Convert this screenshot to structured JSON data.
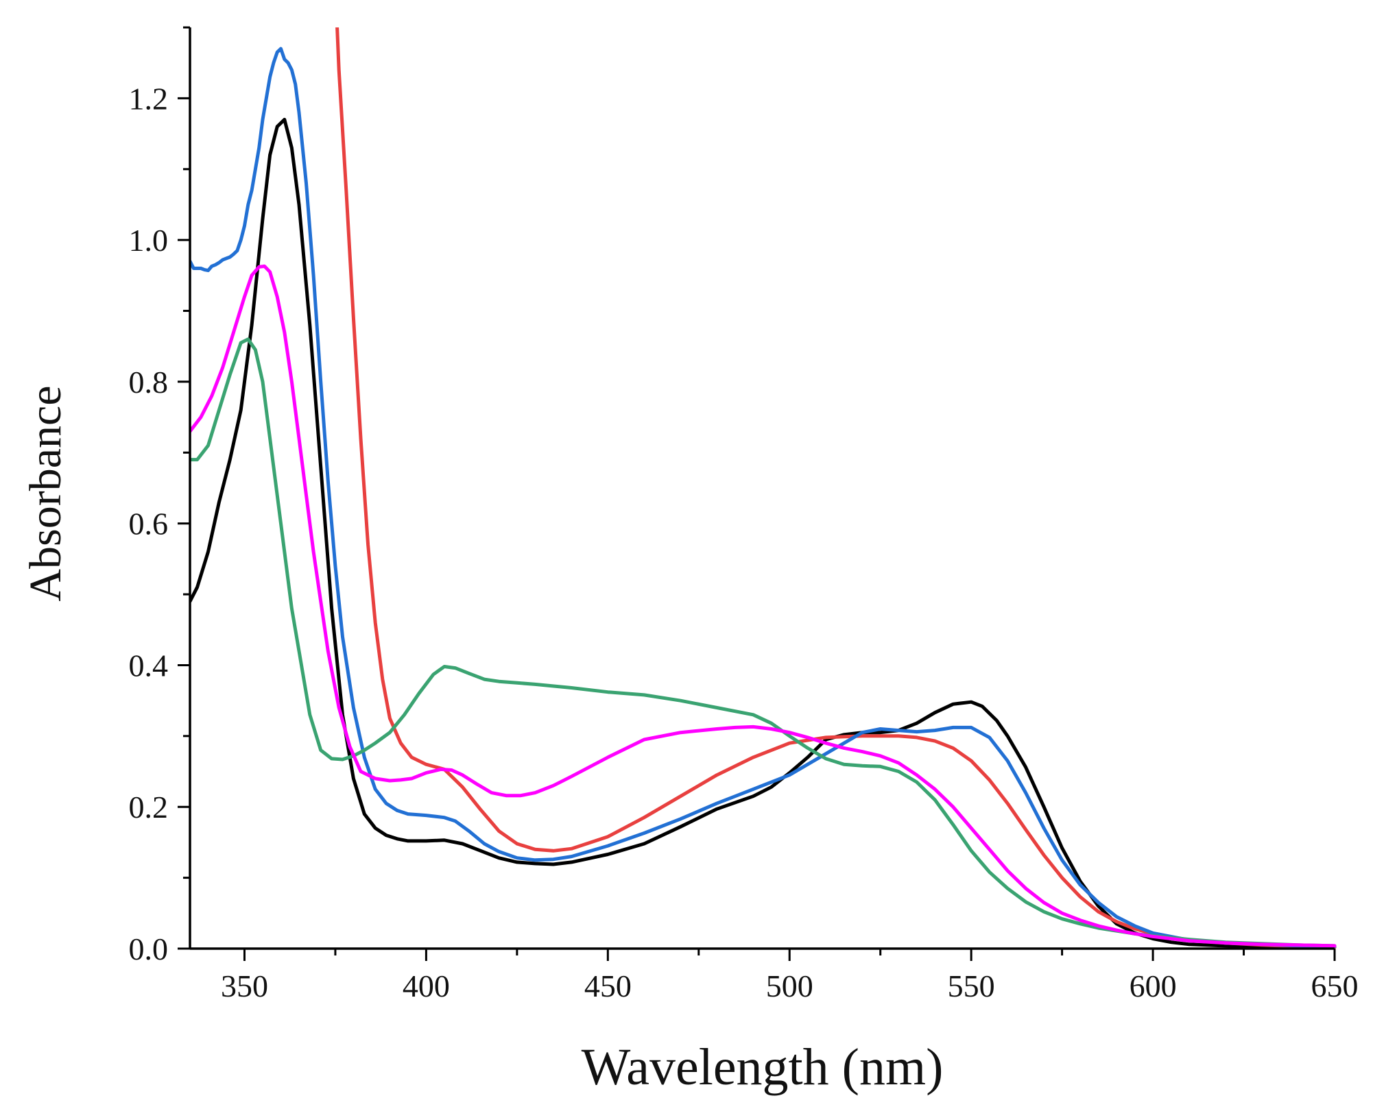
{
  "chart_data": {
    "type": "line",
    "title": "",
    "xlabel": "Wavelength (nm)",
    "ylabel": "Absorbance",
    "xlim": [
      335,
      650
    ],
    "ylim": [
      0,
      1.3
    ],
    "xticks": [
      350,
      400,
      450,
      500,
      550,
      600,
      650
    ],
    "xtick_labels": [
      "350",
      "400",
      "450",
      "500",
      "550",
      "600",
      "650"
    ],
    "yticks": [
      0,
      0.2,
      0.4,
      0.6,
      0.8,
      1.0,
      1.2
    ],
    "ytick_labels": [
      "0.0",
      "0.2",
      "0.4",
      "0.6",
      "0.8",
      "1.0",
      "1.2"
    ],
    "grid": false,
    "legend": "none",
    "series": [
      {
        "name": "black",
        "color": "#000000",
        "x": [
          335,
          337,
          340,
          343,
          346,
          349,
          352,
          355,
          357,
          359,
          361,
          363,
          365,
          368,
          371,
          374,
          377,
          380,
          383,
          386,
          389,
          392,
          395,
          400,
          405,
          410,
          415,
          420,
          425,
          430,
          435,
          440,
          450,
          460,
          470,
          480,
          490,
          495,
          500,
          505,
          510,
          515,
          520,
          525,
          530,
          535,
          540,
          545,
          550,
          553,
          557,
          560,
          565,
          570,
          575,
          580,
          585,
          590,
          595,
          600,
          605,
          610,
          620,
          630,
          640,
          650
        ],
        "y": [
          0.49,
          0.51,
          0.56,
          0.63,
          0.69,
          0.76,
          0.88,
          1.03,
          1.12,
          1.16,
          1.17,
          1.13,
          1.05,
          0.88,
          0.68,
          0.48,
          0.33,
          0.24,
          0.19,
          0.17,
          0.16,
          0.155,
          0.152,
          0.152,
          0.153,
          0.148,
          0.138,
          0.128,
          0.122,
          0.12,
          0.119,
          0.122,
          0.133,
          0.148,
          0.172,
          0.197,
          0.215,
          0.228,
          0.248,
          0.27,
          0.295,
          0.302,
          0.305,
          0.305,
          0.308,
          0.318,
          0.333,
          0.345,
          0.348,
          0.342,
          0.322,
          0.3,
          0.256,
          0.2,
          0.142,
          0.095,
          0.06,
          0.035,
          0.022,
          0.014,
          0.009,
          0.006,
          0.004,
          0.003,
          0.002,
          0.002
        ]
      },
      {
        "name": "red",
        "color": "#e8403f",
        "x": [
          375.5,
          376,
          378,
          380,
          382,
          384,
          386,
          388,
          390,
          393,
          396,
          400,
          405,
          410,
          415,
          420,
          425,
          430,
          435,
          440,
          450,
          460,
          470,
          480,
          490,
          500,
          510,
          520,
          530,
          535,
          540,
          545,
          550,
          555,
          560,
          565,
          570,
          575,
          580,
          585,
          590,
          595,
          600,
          610,
          620,
          630,
          640,
          650
        ],
        "y": [
          1.3,
          1.24,
          1.07,
          0.89,
          0.72,
          0.57,
          0.46,
          0.38,
          0.325,
          0.29,
          0.27,
          0.26,
          0.253,
          0.228,
          0.196,
          0.166,
          0.148,
          0.14,
          0.138,
          0.141,
          0.158,
          0.185,
          0.215,
          0.245,
          0.27,
          0.29,
          0.298,
          0.3,
          0.3,
          0.298,
          0.293,
          0.283,
          0.265,
          0.238,
          0.205,
          0.168,
          0.132,
          0.1,
          0.073,
          0.052,
          0.038,
          0.028,
          0.021,
          0.012,
          0.008,
          0.005,
          0.003,
          0.002
        ]
      },
      {
        "name": "blue",
        "color": "#2270d4",
        "x": [
          335,
          336,
          338,
          339,
          340,
          341,
          342,
          343,
          344,
          345,
          346,
          347,
          348,
          349,
          350,
          351,
          352,
          353,
          354,
          355,
          356,
          357,
          358,
          359,
          360,
          361,
          362,
          363,
          364,
          365,
          367,
          369,
          371,
          373,
          375,
          377,
          380,
          383,
          386,
          389,
          392,
          395,
          400,
          405,
          408,
          412,
          416,
          420,
          425,
          430,
          435,
          440,
          450,
          460,
          470,
          480,
          490,
          500,
          510,
          515,
          520,
          525,
          530,
          535,
          540,
          545,
          550,
          555,
          560,
          565,
          570,
          575,
          580,
          585,
          590,
          595,
          600,
          610,
          620,
          630,
          640,
          650
        ],
        "y": [
          0.97,
          0.96,
          0.96,
          0.958,
          0.957,
          0.963,
          0.965,
          0.968,
          0.972,
          0.974,
          0.976,
          0.98,
          0.985,
          1.0,
          1.02,
          1.05,
          1.07,
          1.1,
          1.13,
          1.17,
          1.2,
          1.23,
          1.25,
          1.265,
          1.27,
          1.255,
          1.25,
          1.24,
          1.22,
          1.18,
          1.08,
          0.95,
          0.8,
          0.66,
          0.54,
          0.44,
          0.34,
          0.27,
          0.225,
          0.205,
          0.195,
          0.19,
          0.188,
          0.185,
          0.18,
          0.165,
          0.148,
          0.137,
          0.128,
          0.125,
          0.126,
          0.13,
          0.145,
          0.163,
          0.183,
          0.205,
          0.225,
          0.245,
          0.275,
          0.29,
          0.305,
          0.31,
          0.308,
          0.306,
          0.308,
          0.312,
          0.312,
          0.298,
          0.265,
          0.22,
          0.17,
          0.125,
          0.09,
          0.065,
          0.045,
          0.032,
          0.022,
          0.012,
          0.008,
          0.006,
          0.004,
          0.003
        ]
      },
      {
        "name": "green",
        "color": "#3aa371",
        "x": [
          335,
          337,
          340,
          343,
          346,
          349,
          351,
          353,
          355,
          357,
          359,
          361,
          363,
          365,
          368,
          371,
          374,
          377,
          380,
          383,
          386,
          390,
          394,
          398,
          402,
          405,
          408,
          412,
          416,
          420,
          425,
          430,
          440,
          450,
          460,
          470,
          480,
          490,
          495,
          500,
          505,
          510,
          515,
          520,
          525,
          530,
          535,
          540,
          545,
          550,
          555,
          560,
          565,
          570,
          575,
          580,
          585,
          590,
          595,
          600,
          610,
          620,
          630,
          640,
          650
        ],
        "y": [
          0.69,
          0.69,
          0.71,
          0.76,
          0.81,
          0.855,
          0.86,
          0.845,
          0.8,
          0.72,
          0.64,
          0.56,
          0.48,
          0.42,
          0.33,
          0.28,
          0.268,
          0.267,
          0.272,
          0.28,
          0.29,
          0.305,
          0.33,
          0.36,
          0.387,
          0.398,
          0.396,
          0.388,
          0.38,
          0.377,
          0.375,
          0.373,
          0.368,
          0.362,
          0.358,
          0.35,
          0.34,
          0.33,
          0.318,
          0.3,
          0.283,
          0.268,
          0.26,
          0.258,
          0.257,
          0.25,
          0.235,
          0.21,
          0.175,
          0.138,
          0.108,
          0.085,
          0.066,
          0.052,
          0.042,
          0.035,
          0.029,
          0.025,
          0.021,
          0.018,
          0.013,
          0.009,
          0.007,
          0.005,
          0.004
        ]
      },
      {
        "name": "magenta",
        "color": "#ff00ff",
        "x": [
          335,
          338,
          341,
          344,
          347,
          350,
          352,
          354,
          355.5,
          357,
          359,
          361,
          363,
          365,
          367,
          369,
          371,
          373,
          376,
          379,
          382,
          386,
          390,
          393,
          396,
          400,
          404,
          407,
          410,
          414,
          418,
          422,
          426,
          430,
          435,
          440,
          450,
          460,
          470,
          480,
          485,
          490,
          495,
          500,
          505,
          510,
          515,
          520,
          525,
          530,
          535,
          540,
          545,
          550,
          555,
          560,
          565,
          570,
          575,
          580,
          585,
          590,
          595,
          600,
          610,
          620,
          630,
          640,
          650
        ],
        "y": [
          0.73,
          0.75,
          0.78,
          0.82,
          0.87,
          0.92,
          0.95,
          0.962,
          0.963,
          0.955,
          0.92,
          0.87,
          0.8,
          0.72,
          0.64,
          0.56,
          0.49,
          0.42,
          0.34,
          0.285,
          0.25,
          0.24,
          0.237,
          0.238,
          0.24,
          0.248,
          0.253,
          0.252,
          0.245,
          0.232,
          0.22,
          0.216,
          0.216,
          0.22,
          0.23,
          0.243,
          0.27,
          0.295,
          0.305,
          0.31,
          0.312,
          0.313,
          0.31,
          0.305,
          0.298,
          0.29,
          0.283,
          0.278,
          0.272,
          0.262,
          0.245,
          0.225,
          0.2,
          0.17,
          0.14,
          0.11,
          0.085,
          0.065,
          0.05,
          0.04,
          0.032,
          0.026,
          0.021,
          0.017,
          0.011,
          0.008,
          0.006,
          0.005,
          0.004
        ]
      }
    ]
  }
}
